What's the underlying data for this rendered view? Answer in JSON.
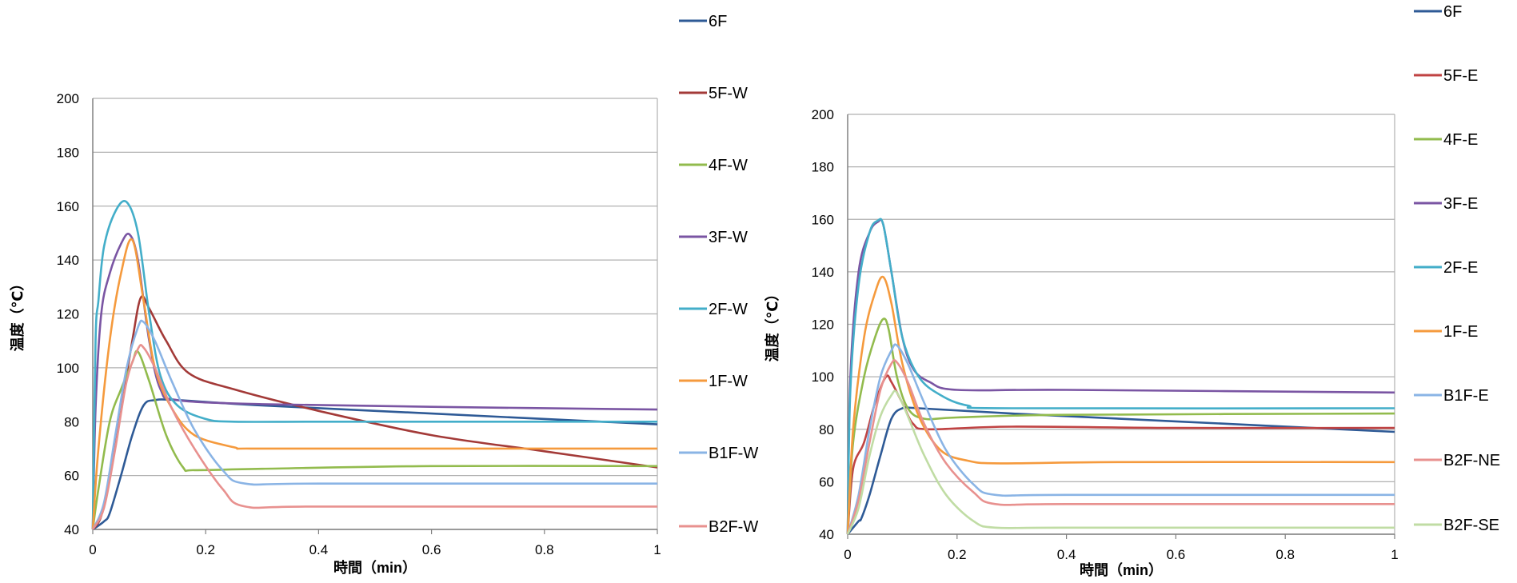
{
  "chart_data": [
    {
      "type": "line",
      "title": "",
      "xlabel": "時間（min）",
      "ylabel": "温度（℃）",
      "xlim": [
        0,
        1
      ],
      "ylim": [
        40,
        200
      ],
      "xticks": [
        0,
        0.2,
        0.4,
        0.6,
        0.8,
        1
      ],
      "xtick_labels": [
        "0",
        "0.2",
        "0.4",
        "0.6",
        "0.8",
        "1"
      ],
      "yticks": [
        40,
        60,
        80,
        100,
        120,
        140,
        160,
        180,
        200
      ],
      "yticks_labels": [
        "40",
        "60",
        "80",
        "100",
        "120",
        "140",
        "160",
        "180",
        "200"
      ],
      "grid": true,
      "legend": "right",
      "series": [
        {
          "name": "6F",
          "color": "#2e5a96",
          "x": [
            0,
            0.02,
            0.03,
            0.05,
            0.07,
            0.09,
            0.11,
            0.15,
            0.3,
            0.6,
            1
          ],
          "y": [
            40,
            43,
            46,
            60,
            75,
            86,
            88,
            88,
            86,
            83,
            79
          ]
        },
        {
          "name": "5F-W",
          "color": "#a33a38",
          "x": [
            0,
            0.015,
            0.03,
            0.05,
            0.07,
            0.085,
            0.1,
            0.13,
            0.17,
            0.25,
            0.4,
            0.6,
            0.8,
            1
          ],
          "y": [
            40,
            45,
            60,
            85,
            110,
            126,
            122,
            110,
            98,
            92,
            84,
            75,
            69,
            63
          ]
        },
        {
          "name": "4F-W",
          "color": "#92bb4d",
          "x": [
            0,
            0.01,
            0.03,
            0.05,
            0.07,
            0.08,
            0.1,
            0.13,
            0.16,
            0.18,
            0.3,
            0.6,
            1
          ],
          "y": [
            40,
            55,
            80,
            92,
            102,
            106,
            95,
            75,
            63,
            62,
            62.5,
            63.5,
            63.5
          ]
        },
        {
          "name": "3F-W",
          "color": "#7a55a3",
          "x": [
            0,
            0.005,
            0.015,
            0.03,
            0.05,
            0.065,
            0.08,
            0.1,
            0.12,
            0.15,
            0.3,
            0.6,
            1
          ],
          "y": [
            40,
            85,
            120,
            135,
            146,
            149.5,
            140,
            110,
            92,
            88,
            86.5,
            85.5,
            84.5
          ]
        },
        {
          "name": "2F-W",
          "color": "#43aec9",
          "x": [
            0,
            0.005,
            0.01,
            0.02,
            0.04,
            0.06,
            0.08,
            0.1,
            0.12,
            0.15,
            0.2,
            0.25,
            0.4,
            0.7,
            1
          ],
          "y": [
            40,
            110,
            125,
            145,
            158,
            161.5,
            150,
            120,
            97,
            86,
            81,
            80,
            80,
            80,
            80
          ]
        },
        {
          "name": "1F-W",
          "color": "#f59a3d",
          "x": [
            0,
            0.01,
            0.03,
            0.05,
            0.07,
            0.09,
            0.11,
            0.14,
            0.18,
            0.25,
            0.28,
            0.5,
            1
          ],
          "y": [
            40,
            70,
            110,
            135,
            147.5,
            125,
            100,
            85,
            75,
            70.5,
            70,
            70,
            70
          ]
        },
        {
          "name": "B1F-W",
          "color": "#8ab4e5",
          "x": [
            0,
            0.02,
            0.04,
            0.06,
            0.08,
            0.09,
            0.11,
            0.14,
            0.18,
            0.23,
            0.27,
            0.4,
            1
          ],
          "y": [
            40,
            50,
            75,
            100,
            115,
            117,
            110,
            95,
            77,
            62,
            57,
            57,
            57
          ]
        },
        {
          "name": "B2F-W",
          "color": "#e8918f",
          "x": [
            0,
            0.02,
            0.04,
            0.06,
            0.08,
            0.09,
            0.11,
            0.14,
            0.18,
            0.23,
            0.27,
            0.4,
            1
          ],
          "y": [
            40,
            48,
            70,
            95,
            107,
            107.5,
            100,
            85,
            70,
            55,
            48.5,
            48.5,
            48.5
          ]
        }
      ]
    },
    {
      "type": "line",
      "title": "",
      "xlabel": "時間（min）",
      "ylabel": "温度（℃）",
      "xlim": [
        0,
        1
      ],
      "ylim": [
        40,
        200
      ],
      "xticks": [
        0,
        0.2,
        0.4,
        0.6,
        0.8,
        1
      ],
      "xtick_labels": [
        "0",
        "0.2",
        "0.4",
        "0.6",
        "0.8",
        "1"
      ],
      "yticks": [
        40,
        60,
        80,
        100,
        120,
        140,
        160,
        180,
        200
      ],
      "yticks_labels": [
        "40",
        "60",
        "80",
        "100",
        "120",
        "140",
        "160",
        "180",
        "200"
      ],
      "grid": true,
      "legend": "right",
      "series": [
        {
          "name": "6F",
          "color": "#2e5a96",
          "x": [
            0,
            0.02,
            0.025,
            0.04,
            0.06,
            0.08,
            0.1,
            0.13,
            0.3,
            0.6,
            1
          ],
          "y": [
            40,
            45,
            46,
            55,
            70,
            84,
            88,
            88,
            86,
            83,
            79
          ]
        },
        {
          "name": "5F-E",
          "color": "#c04343",
          "x": [
            0,
            0.01,
            0.03,
            0.05,
            0.07,
            0.08,
            0.1,
            0.12,
            0.15,
            0.3,
            0.6,
            1
          ],
          "y": [
            40,
            65,
            75,
            90,
            100,
            98,
            90,
            82,
            80,
            81,
            80.5,
            80.5
          ]
        },
        {
          "name": "4F-E",
          "color": "#92bb4d",
          "x": [
            0,
            0.01,
            0.03,
            0.05,
            0.065,
            0.075,
            0.09,
            0.11,
            0.14,
            0.2,
            0.4,
            1
          ],
          "y": [
            40,
            75,
            100,
            115,
            122,
            118,
            100,
            88,
            84,
            84.5,
            85.5,
            86
          ]
        },
        {
          "name": "3F-E",
          "color": "#7a55a3",
          "x": [
            0,
            0.005,
            0.02,
            0.04,
            0.055,
            0.065,
            0.08,
            0.1,
            0.12,
            0.15,
            0.2,
            0.4,
            1
          ],
          "y": [
            40,
            100,
            140,
            155,
            159,
            158,
            140,
            115,
            103,
            98,
            95,
            95,
            94
          ]
        },
        {
          "name": "2F-E",
          "color": "#43aec9",
          "x": [
            0,
            0.005,
            0.02,
            0.04,
            0.055,
            0.065,
            0.08,
            0.1,
            0.13,
            0.17,
            0.22,
            0.3,
            1
          ],
          "y": [
            40,
            95,
            135,
            155,
            159.5,
            158,
            140,
            115,
            100,
            93,
            89,
            88,
            88
          ]
        },
        {
          "name": "1F-E",
          "color": "#f59a3d",
          "x": [
            0,
            0.01,
            0.03,
            0.05,
            0.065,
            0.08,
            0.1,
            0.13,
            0.17,
            0.22,
            0.28,
            0.5,
            1
          ],
          "y": [
            40,
            80,
            115,
            132,
            138,
            128,
            105,
            85,
            72,
            68,
            67,
            67.5,
            67.5
          ]
        },
        {
          "name": "B1F-E",
          "color": "#8ab4e5",
          "x": [
            0,
            0.02,
            0.04,
            0.06,
            0.08,
            0.09,
            0.11,
            0.14,
            0.18,
            0.23,
            0.27,
            0.4,
            1
          ],
          "y": [
            40,
            55,
            80,
            100,
            110,
            112,
            105,
            90,
            72,
            59,
            55,
            55,
            55
          ]
        },
        {
          "name": "B2F-NE",
          "color": "#e8918f",
          "x": [
            0,
            0.02,
            0.04,
            0.06,
            0.08,
            0.09,
            0.11,
            0.14,
            0.18,
            0.23,
            0.27,
            0.4,
            1
          ],
          "y": [
            40,
            53,
            75,
            95,
            105,
            105.5,
            98,
            82,
            67,
            56,
            51.5,
            51.5,
            51.5
          ]
        },
        {
          "name": "B2F-SE",
          "color": "#c0dca4",
          "x": [
            0,
            0.02,
            0.04,
            0.06,
            0.08,
            0.09,
            0.11,
            0.14,
            0.18,
            0.23,
            0.27,
            0.4,
            1
          ],
          "y": [
            40,
            50,
            70,
            85,
            93,
            94,
            85,
            70,
            55,
            45,
            42.5,
            42.5,
            42.5
          ]
        }
      ]
    }
  ]
}
